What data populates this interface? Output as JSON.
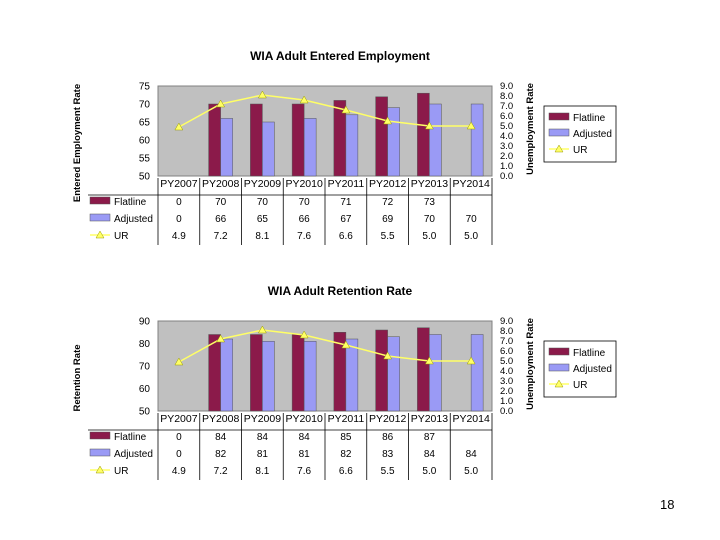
{
  "page": {
    "number": "18"
  },
  "colors": {
    "flatline": "#8b1a4a",
    "adjusted": "#9a9af5",
    "ur": "#ffff66",
    "plot_bg": "#c0c0c0"
  },
  "chart_data": [
    {
      "type": "bar",
      "title": "WIA Adult Entered Employment",
      "ylabel": "Entered Employment Rate",
      "y2label": "Unemployment Rate",
      "categories": [
        "PY2007",
        "PY2008",
        "PY2009",
        "PY2010",
        "PY2011",
        "PY2012",
        "PY2013",
        "PY2014"
      ],
      "ylim": [
        50,
        75
      ],
      "yticks": [
        50,
        55,
        60,
        65,
        70,
        75
      ],
      "y2lim": [
        0,
        9
      ],
      "y2ticks": [
        "0.0",
        "1.0",
        "2.0",
        "3.0",
        "4.0",
        "5.0",
        "6.0",
        "7.0",
        "8.0",
        "9.0"
      ],
      "series": [
        {
          "name": "Flatline",
          "kind": "bar",
          "values": [
            0,
            70,
            70,
            70,
            71,
            72,
            73,
            null
          ],
          "table": [
            "0",
            "70",
            "70",
            "70",
            "71",
            "72",
            "73",
            ""
          ]
        },
        {
          "name": "Adjusted",
          "kind": "bar",
          "values": [
            0,
            66,
            65,
            66,
            67,
            69,
            70,
            70
          ],
          "table": [
            "0",
            "66",
            "65",
            "66",
            "67",
            "69",
            "70",
            "70"
          ]
        },
        {
          "name": "UR",
          "kind": "line",
          "axis": "y2",
          "values": [
            4.9,
            7.2,
            8.1,
            7.6,
            6.6,
            5.5,
            5.0,
            5.0
          ],
          "table": [
            "4.9",
            "7.2",
            "8.1",
            "7.6",
            "6.6",
            "5.5",
            "5.0",
            "5.0"
          ]
        }
      ],
      "legend": "right",
      "grid": false
    },
    {
      "type": "bar",
      "title": "WIA Adult Retention Rate",
      "ylabel": "Retention Rate",
      "y2label": "Unemployment Rate",
      "categories": [
        "PY2007",
        "PY2008",
        "PY2009",
        "PY2010",
        "PY2011",
        "PY2012",
        "PY2013",
        "PY2014"
      ],
      "ylim": [
        50,
        90
      ],
      "yticks": [
        50,
        60,
        70,
        80,
        90
      ],
      "y2lim": [
        0,
        9
      ],
      "y2ticks": [
        "0.0",
        "1.0",
        "2.0",
        "3.0",
        "4.0",
        "5.0",
        "6.0",
        "7.0",
        "8.0",
        "9.0"
      ],
      "series": [
        {
          "name": "Flatline",
          "kind": "bar",
          "values": [
            0,
            84,
            84,
            84,
            85,
            86,
            87,
            null
          ],
          "table": [
            "0",
            "84",
            "84",
            "84",
            "85",
            "86",
            "87",
            ""
          ]
        },
        {
          "name": "Adjusted",
          "kind": "bar",
          "values": [
            0,
            82,
            81,
            81,
            82,
            83,
            84,
            84
          ],
          "table": [
            "0",
            "82",
            "81",
            "81",
            "82",
            "83",
            "84",
            "84"
          ]
        },
        {
          "name": "UR",
          "kind": "line",
          "axis": "y2",
          "values": [
            4.9,
            7.2,
            8.1,
            7.6,
            6.6,
            5.5,
            5.0,
            5.0
          ],
          "table": [
            "4.9",
            "7.2",
            "8.1",
            "7.6",
            "6.6",
            "5.5",
            "5.0",
            "5.0"
          ]
        }
      ],
      "legend": "right",
      "grid": false
    }
  ]
}
